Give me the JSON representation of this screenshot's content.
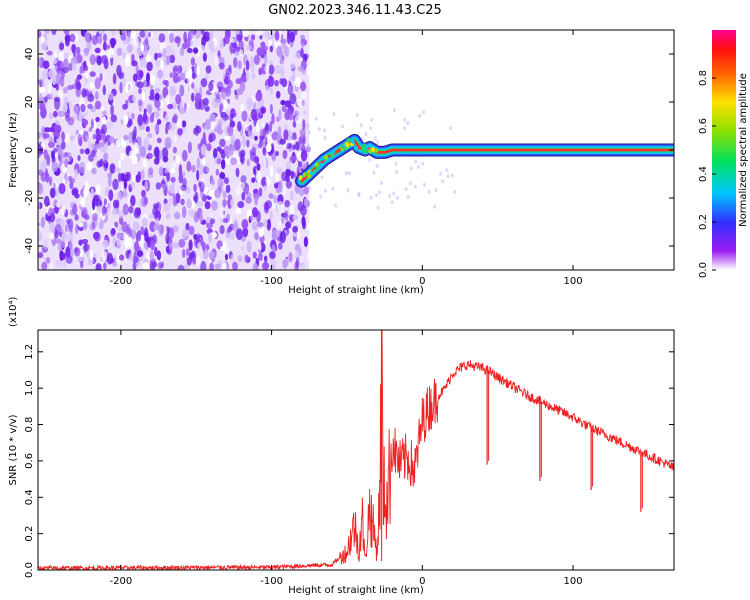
{
  "figure": {
    "title": "GN02.2023.346.11.43.C25"
  },
  "chart_data": [
    {
      "type": "heatmap",
      "xlabel": "Height of straight line (km)",
      "ylabel": "Frequency (Hz)",
      "xlim": [
        -255,
        167
      ],
      "ylim": [
        -50,
        50
      ],
      "xticks": [
        -200,
        -100,
        0,
        100
      ],
      "yticks": [
        -40,
        -20,
        0,
        20,
        40
      ],
      "noise_region_x": [
        -255,
        -75
      ],
      "signal_trace": {
        "x": [
          -80,
          -75,
          -70,
          -65,
          -60,
          -55,
          -50,
          -45,
          -42,
          -38,
          -35,
          -30,
          -25,
          -20,
          -15,
          -10,
          -5,
          0,
          20,
          60,
          100,
          140,
          167
        ],
        "y": [
          -13,
          -10,
          -7,
          -4,
          -2,
          0,
          2,
          4,
          1,
          0,
          1,
          -1,
          -1,
          0,
          0,
          0,
          0,
          0,
          0,
          0,
          0,
          0,
          0
        ]
      },
      "colorbar": {
        "label": "Normalized spectral amplitude",
        "range": [
          0,
          1
        ],
        "ticks": [
          0.0,
          0.2,
          0.4,
          0.6,
          0.8
        ],
        "colormap": "rainbow"
      },
      "colors": {
        "noise": "#7b2bf0",
        "trace_outer": "#3355ff",
        "trace_mid": "#22d07a",
        "trace_core": "#ff3030"
      }
    },
    {
      "type": "line",
      "xlabel": "Height of straight line (km)",
      "ylabel": "SNR (10 * v/v)",
      "y_multiplier": "(x10⁴)",
      "xlim": [
        -255,
        167
      ],
      "ylim": [
        0,
        13200
      ],
      "xticks": [
        -200,
        -100,
        0,
        100
      ],
      "yticks": [
        0,
        2000,
        4000,
        6000,
        8000,
        10000,
        12000
      ],
      "ytick_labels": [
        "0.0",
        "0.2",
        "0.4",
        "0.6",
        "0.8",
        "1.0",
        "1.2"
      ],
      "series": [
        {
          "color": "#ee2222",
          "x": [
            -255,
            -100,
            -60,
            -50,
            -45,
            -42,
            -40,
            -38,
            -35,
            -32,
            -30,
            -28,
            -27,
            -26,
            -25,
            -24,
            -22,
            -20,
            -15,
            -10,
            -5,
            0,
            5,
            10,
            15,
            20,
            25,
            30,
            35,
            40,
            45,
            50,
            60,
            70,
            80,
            90,
            100,
            110,
            120,
            130,
            140,
            150,
            160,
            167
          ],
          "y": [
            100,
            150,
            300,
            1000,
            2500,
            1000,
            3000,
            500,
            3500,
            2000,
            1000,
            4500,
            13200,
            3000,
            5000,
            3500,
            5000,
            7000,
            5800,
            6200,
            5500,
            8200,
            9000,
            9500,
            10000,
            10800,
            11100,
            11300,
            11200,
            11100,
            10900,
            10600,
            10100,
            9600,
            9200,
            8800,
            8400,
            7900,
            7500,
            7100,
            6700,
            6300,
            5900,
            5600
          ]
        }
      ],
      "notches": [
        {
          "x": 43,
          "y_min": 5800
        },
        {
          "x": 78,
          "y_min": 4900
        },
        {
          "x": 112,
          "y_min": 4400
        },
        {
          "x": 145,
          "y_min": 3200
        }
      ]
    }
  ]
}
